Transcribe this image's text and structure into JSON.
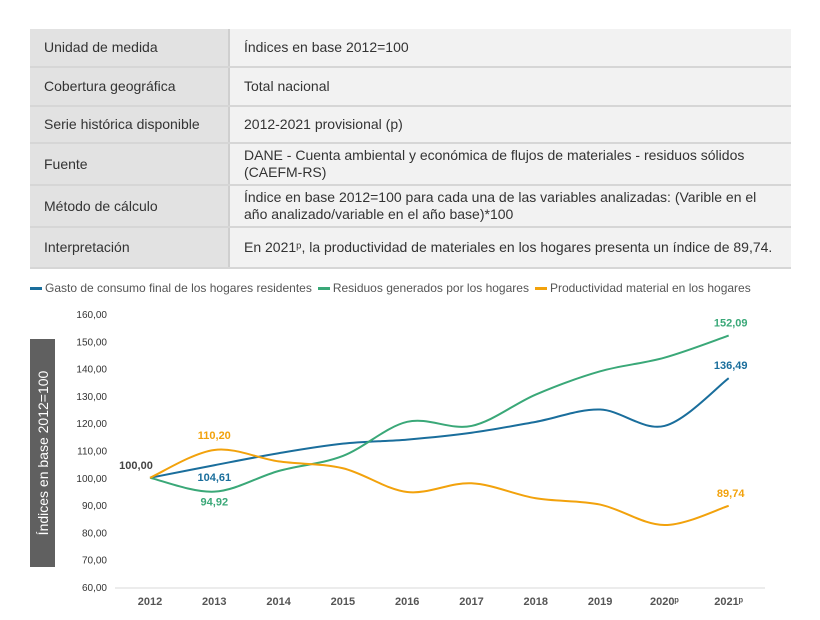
{
  "info_table": [
    {
      "label": "Unidad de medida",
      "value": "Índices en base 2012=100"
    },
    {
      "label": "Cobertura geográfica",
      "value": "Total nacional"
    },
    {
      "label": "Serie histórica disponible",
      "value": "2012-2021 provisional (p)"
    },
    {
      "label": "Fuente",
      "value": "DANE - Cuenta ambiental y económica de flujos de materiales - residuos sólidos (CAEFM-RS)"
    },
    {
      "label": "Método de cálculo",
      "value": "Índice en base 2012=100 para cada una de las variables analizadas: (Varible en el año analizado/variable en el año base)*100"
    },
    {
      "label": "Interpretación",
      "value": "En 2021ᵖ, la productividad de materiales en los hogares presenta un índice de 89,74."
    }
  ],
  "chart_data": {
    "type": "line",
    "ylabel": "Índices en base 2012=100",
    "ylim": [
      60,
      160
    ],
    "yticks": [
      "60,00",
      "70,00",
      "80,00",
      "90,00",
      "100,00",
      "110,00",
      "120,00",
      "130,00",
      "140,00",
      "150,00",
      "160,00"
    ],
    "categories": [
      "2012",
      "2013",
      "2014",
      "2015",
      "2016",
      "2017",
      "2018",
      "2019",
      "2020ᵖ",
      "2021ᵖ"
    ],
    "legend_position": "top",
    "grid": false,
    "series": [
      {
        "name": "Gasto de consumo final de los hogares residentes",
        "color": "#1a6e9c",
        "values": [
          100,
          104.61,
          109,
          112.5,
          114,
          116.5,
          120.5,
          125,
          119,
          136.49
        ],
        "labels": {
          "1": "104,61",
          "9": "136,49"
        }
      },
      {
        "name": "Residuos generados por los hogares",
        "color": "#3aa878",
        "values": [
          100,
          94.92,
          102.5,
          108,
          120.5,
          119,
          130.5,
          139,
          144,
          152.09
        ],
        "labels": {
          "1": "94,92",
          "9": "152,09"
        }
      },
      {
        "name": "Productividad material en los hogares",
        "color": "#f2a20c",
        "values": [
          100,
          110.2,
          106,
          103.5,
          94.8,
          98,
          92.5,
          90.2,
          82.7,
          89.74
        ],
        "labels": {
          "1": "110,20",
          "9": "89,74"
        }
      }
    ],
    "shared_label": "100,00"
  }
}
